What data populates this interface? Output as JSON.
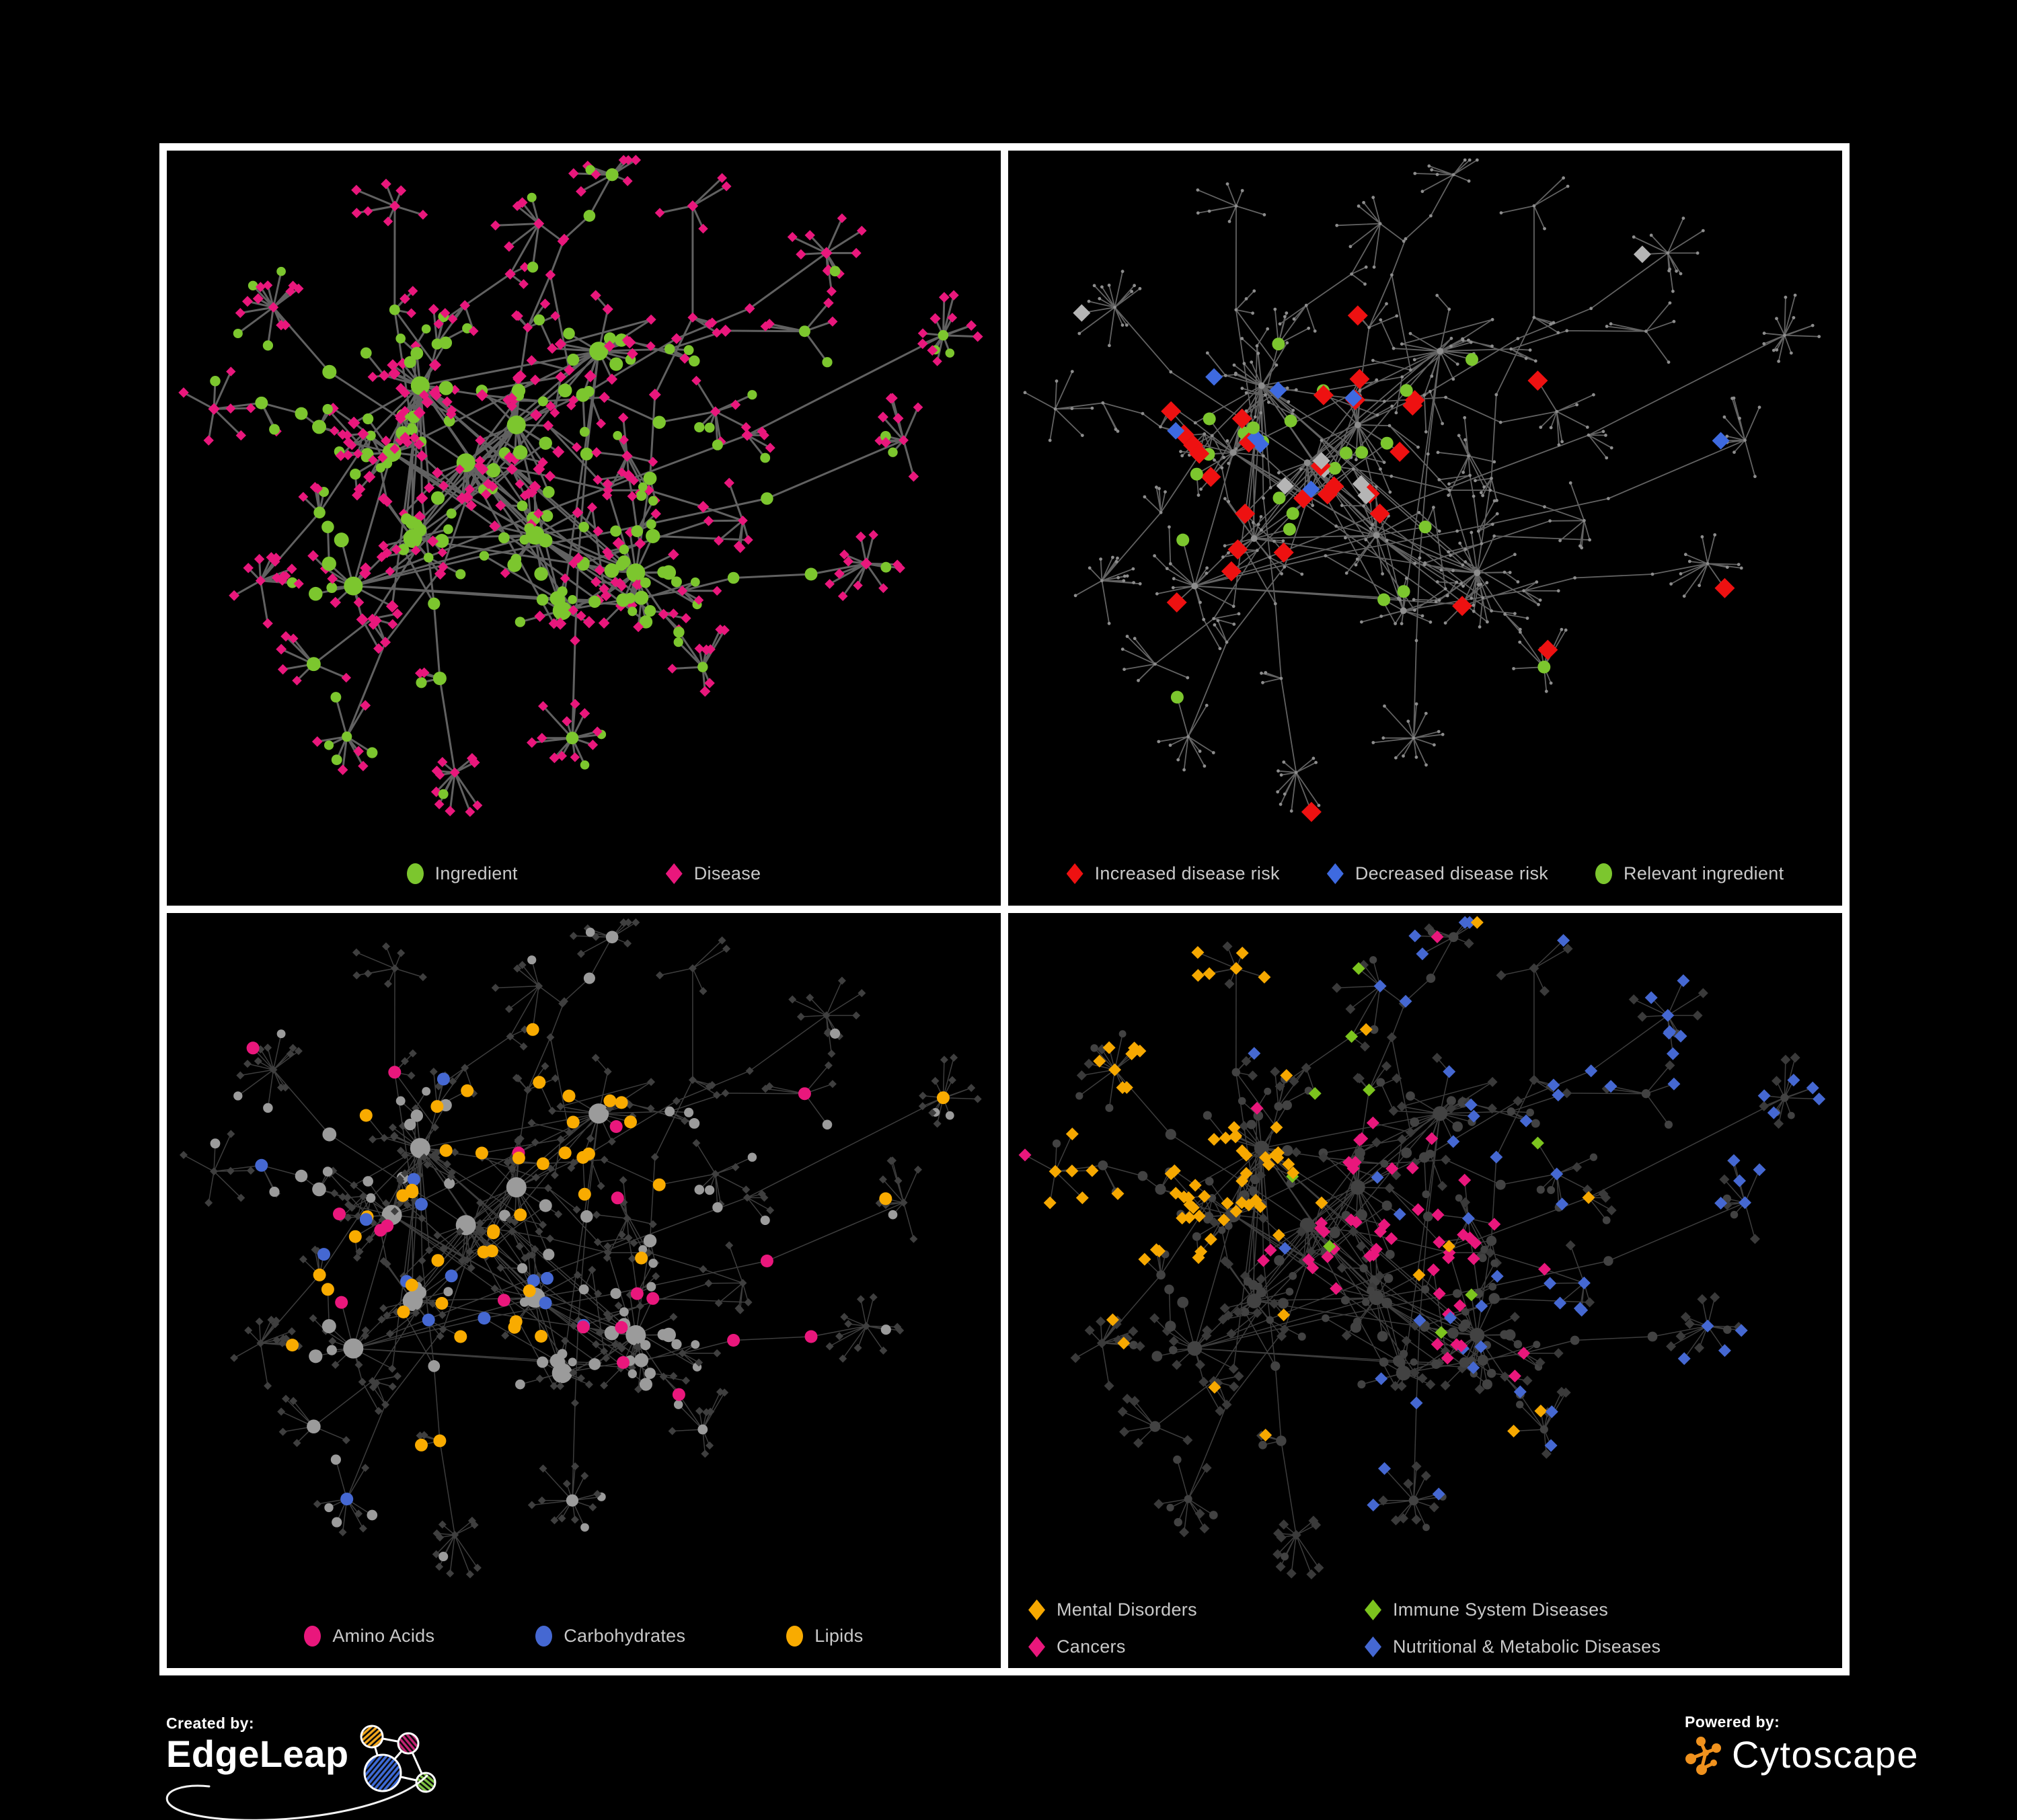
{
  "figure": {
    "background": "#000000",
    "panel_border_color": "#ffffff",
    "legend_text_color": "#c9c9c9"
  },
  "panels": [
    {
      "name": "ingredient-disease",
      "legend": [
        {
          "shape": "circle",
          "color": "#7cc62e",
          "label": "Ingredient"
        },
        {
          "shape": "diamond",
          "color": "#e9177c",
          "label": "Disease"
        }
      ]
    },
    {
      "name": "disease-risk",
      "legend": [
        {
          "shape": "diamond",
          "color": "#ee1111",
          "label": "Increased disease risk"
        },
        {
          "shape": "diamond",
          "color": "#3e6ae0",
          "label": "Decreased disease risk"
        },
        {
          "shape": "circle",
          "color": "#7cc62e",
          "label": "Relevant ingredient"
        }
      ]
    },
    {
      "name": "ingredient-classes",
      "legend": [
        {
          "shape": "circle",
          "color": "#e9177c",
          "label": "Amino Acids"
        },
        {
          "shape": "circle",
          "color": "#4568d2",
          "label": "Carbohydrates"
        },
        {
          "shape": "circle",
          "color": "#f9ab00",
          "label": "Lipids"
        }
      ]
    },
    {
      "name": "disease-classes",
      "legend": [
        {
          "shape": "diamond",
          "color": "#f6a800",
          "label": "Mental Disorders"
        },
        {
          "shape": "diamond",
          "color": "#7cc41e",
          "label": "Immune System Diseases"
        },
        {
          "shape": "diamond",
          "color": "#e9177c",
          "label": "Cancers"
        },
        {
          "shape": "diamond",
          "color": "#4568d2",
          "label": "Nutritional & Metabolic Diseases"
        }
      ]
    }
  ],
  "panel_render": [
    {
      "edge_color": "#6c6c6c",
      "edge_width": 3,
      "edge_opacity": 0.9,
      "base_circle": "#8d8d8d"
    },
    {
      "edge_color": "#7b7b7b",
      "edge_width": 1.8,
      "edge_opacity": 0.8,
      "base_circle": "#8d8d8d",
      "silver_diamond": "#b5b5b5"
    },
    {
      "edge_color": "#b2b2b2",
      "edge_width": 1.5,
      "edge_opacity": 0.34,
      "gray_circle": "#9b9b9b",
      "dark_diamond": "#3f3f3f"
    },
    {
      "edge_color": "#a9a9a9",
      "edge_width": 1.5,
      "edge_opacity": 0.36,
      "gray_circle": "#424242",
      "dark_diamond": "#3a3a3a"
    }
  ],
  "network": {
    "seed": 1337,
    "hubs": [
      [
        0.31,
        0.35
      ],
      [
        0.27,
        0.45
      ],
      [
        0.36,
        0.46
      ],
      [
        0.3,
        0.56
      ],
      [
        0.41,
        0.39
      ],
      [
        0.45,
        0.55
      ],
      [
        0.23,
        0.64
      ],
      [
        0.52,
        0.3
      ],
      [
        0.47,
        0.67
      ],
      [
        0.57,
        0.62
      ]
    ],
    "arms": [
      [
        0.52,
        0.06
      ],
      [
        0.66,
        0.1
      ],
      [
        0.82,
        0.16
      ],
      [
        0.92,
        0.26
      ],
      [
        0.88,
        0.44
      ],
      [
        0.77,
        0.29
      ],
      [
        0.71,
        0.55
      ],
      [
        0.63,
        0.77
      ],
      [
        0.5,
        0.88
      ],
      [
        0.36,
        0.93
      ],
      [
        0.21,
        0.83
      ],
      [
        0.09,
        0.62
      ],
      [
        0.07,
        0.4
      ],
      [
        0.13,
        0.22
      ],
      [
        0.29,
        0.07
      ],
      [
        0.42,
        0.14
      ],
      [
        0.86,
        0.61
      ],
      [
        0.66,
        0.38
      ],
      [
        0.18,
        0.74
      ],
      [
        0.55,
        0.42
      ]
    ],
    "highlight_counts": {
      "increased_risk": 30,
      "decreased_risk": 8,
      "literature": 7,
      "relevant_ingredient": 24,
      "lipids": 46,
      "carbohydrates": 15,
      "amino_acids": 20,
      "mental": 78,
      "cancers": 52,
      "nutritional": 66,
      "immune": 9
    }
  },
  "footer": {
    "created_by_label": "Created by:",
    "edgeleap_name": "EdgeLeap",
    "powered_by_label": "Powered by:",
    "cytoscape_name": "Cytoscape",
    "edgeleap_colors": {
      "orange": "#f2a71c",
      "magenta": "#c42373",
      "blue": "#3d6ad6",
      "green": "#7dc242"
    },
    "cytoscape_orange": "#f0921e"
  }
}
